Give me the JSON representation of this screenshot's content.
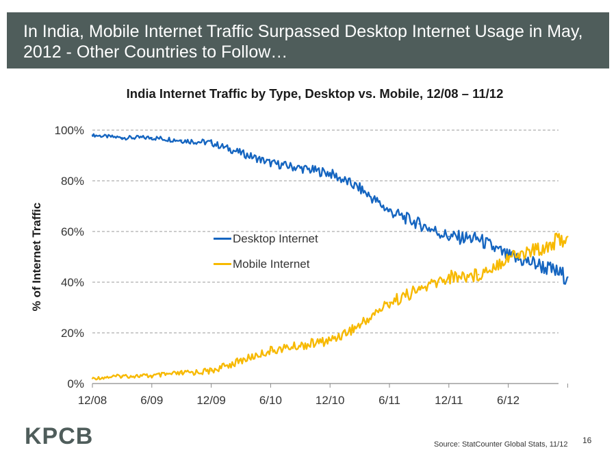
{
  "header": {
    "title": "In India, Mobile Internet Traffic Surpassed Desktop Internet Usage in May, 2012 - Other Countries to Follow…"
  },
  "colors": {
    "header_bg": "#4f5d5b",
    "desktop": "#1565c0",
    "mobile": "#f7b900"
  },
  "chart_data": {
    "type": "line",
    "title": "India Internet Traffic by Type, Desktop vs. Mobile, 12/08 – 11/12",
    "xlabel": "",
    "ylabel": "% of Internet Traffic",
    "x_ticks": [
      "12/08",
      "6/09",
      "12/09",
      "6/10",
      "12/10",
      "6/11",
      "12/11",
      "6/12"
    ],
    "y_ticks": [
      "0%",
      "20%",
      "40%",
      "60%",
      "80%",
      "100%"
    ],
    "ylim": [
      0,
      100
    ],
    "grid": "horizontal dashed",
    "legend_position": "center-left",
    "x": [
      "12/08",
      "3/09",
      "6/09",
      "9/09",
      "12/09",
      "3/10",
      "6/10",
      "9/10",
      "12/10",
      "3/11",
      "6/11",
      "9/11",
      "12/11",
      "3/12",
      "6/12",
      "9/12",
      "11/12"
    ],
    "series": [
      {
        "name": "Desktop Internet",
        "values": [
          98,
          97,
          97,
          96,
          95,
          91,
          87,
          85,
          83,
          77,
          68,
          63,
          58,
          57,
          50,
          47,
          42
        ]
      },
      {
        "name": "Mobile Internet",
        "values": [
          2,
          3,
          3,
          4,
          5,
          9,
          13,
          15,
          17,
          23,
          32,
          37,
          42,
          43,
          50,
          53,
          58
        ]
      }
    ]
  },
  "footer": {
    "logo": "KPCB",
    "source": "Source: StatCounter Global Stats, 11/12",
    "page_number": "16"
  }
}
